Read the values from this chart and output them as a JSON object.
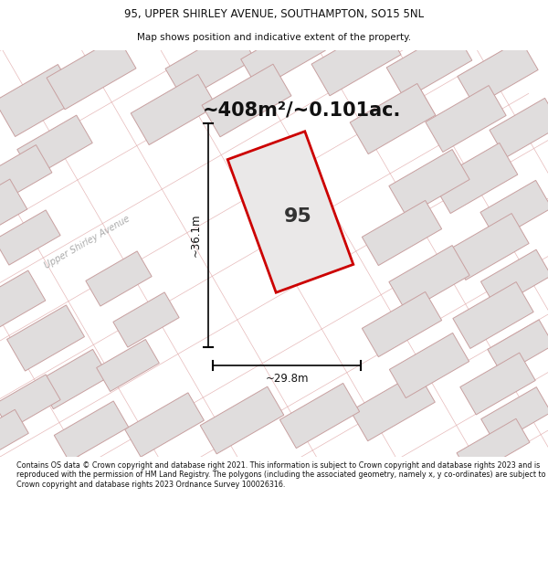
{
  "title_line1": "95, UPPER SHIRLEY AVENUE, SOUTHAMPTON, SO15 5NL",
  "title_line2": "Map shows position and indicative extent of the property.",
  "area_text": "~408m²/~0.101ac.",
  "plot_number": "95",
  "width_label": "~29.8m",
  "height_label": "~36.1m",
  "street_label": "Upper Shirley Avenue",
  "footer_text": "Contains OS data © Crown copyright and database right 2021. This information is subject to Crown copyright and database rights 2023 and is reproduced with the permission of HM Land Registry. The polygons (including the associated geometry, namely x, y co-ordinates) are subject to Crown copyright and database rights 2023 Ordnance Survey 100026316.",
  "map_bg": "#f2f0f0",
  "building_fill": "#e0dddd",
  "building_edge": "#c8a0a0",
  "plot_fill": "#eae8e8",
  "plot_edge": "#cc0000",
  "cadastral_color": "#e0a8a8",
  "street_label_color": "#aaaaaa",
  "footer_bg": "#ffffff",
  "title_bg": "#ffffff"
}
